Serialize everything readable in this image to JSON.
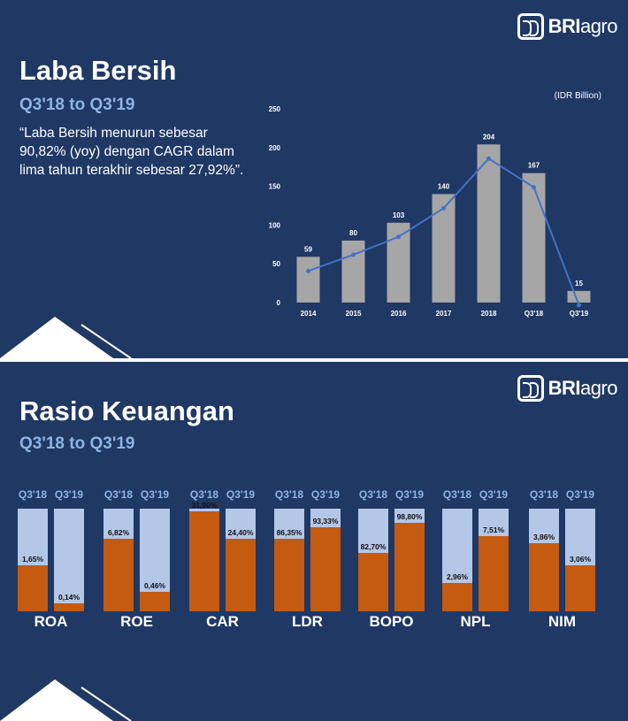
{
  "slide1": {
    "logo": {
      "text_bold": "BRI",
      "text_regular": "agro"
    },
    "title": "Laba Bersih",
    "subtitle": "Q3'18 to Q3'19",
    "quote": "“Laba Bersih menurun sebesar 90,82% (yoy) dengan CAGR dalam lima tahun terakhir sebesar 27,92%”.",
    "chart_data": {
      "type": "bar",
      "unit_label": "(IDR Billion)",
      "categories": [
        "2014",
        "2015",
        "2016",
        "2017",
        "2018",
        "Q3'18",
        "Q3'19"
      ],
      "values": [
        59,
        80,
        103,
        140,
        204,
        167,
        15
      ],
      "data_labels": [
        "59",
        "80",
        "103",
        "140",
        "204",
        "167",
        "15"
      ],
      "yticks": [
        0,
        50,
        100,
        150,
        200,
        250
      ],
      "ylim": [
        0,
        250
      ],
      "overlay": "line",
      "colors": {
        "bar": "#a6a6a6",
        "line": "#4472c4",
        "label": "#ffffff"
      }
    }
  },
  "slide2": {
    "logo": {
      "text_bold": "BRI",
      "text_regular": "agro"
    },
    "title": "Rasio Keuangan",
    "subtitle": "Q3'18 to Q3'19",
    "chart_data": {
      "type": "bar",
      "categories": [
        "ROA",
        "ROE",
        "CAR",
        "LDR",
        "BOPO",
        "NPL",
        "NIM"
      ],
      "period_labels": [
        "Q3'18",
        "Q3'19"
      ],
      "series": [
        {
          "name": "Q3'18",
          "labels": [
            "1,65%",
            "6,82%",
            "31,90%",
            "86,35%",
            "82,70%",
            "2,96%",
            "3,86%"
          ],
          "fill": [
            0.45,
            0.71,
            0.97,
            0.71,
            0.57,
            0.28,
            0.66
          ]
        },
        {
          "name": "Q3'19",
          "labels": [
            "0,14%",
            "0,46%",
            "24,40%",
            "93,33%",
            "98,80%",
            "7,51%",
            "3,06%"
          ],
          "fill": [
            0.08,
            0.19,
            0.71,
            0.82,
            0.86,
            0.73,
            0.45
          ]
        }
      ],
      "colors": {
        "filled": "#c55a11",
        "empty": "#b4c7e7",
        "header": "#8fb4e3"
      }
    }
  }
}
